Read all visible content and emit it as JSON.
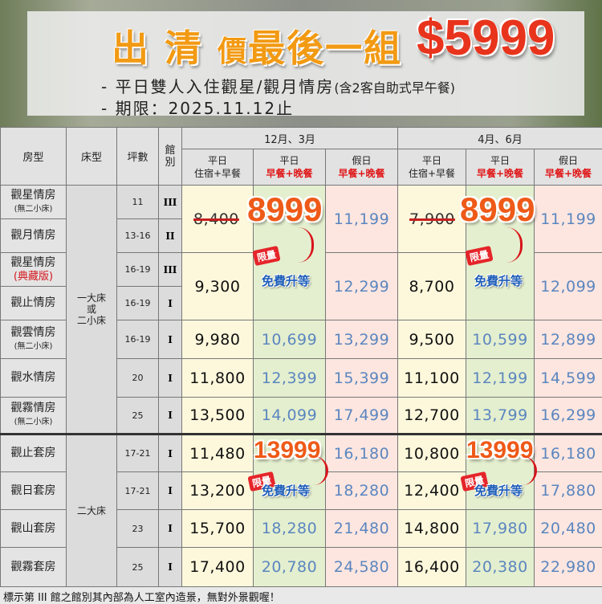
{
  "banner": {
    "title_a": "出 清",
    "title_b": "價",
    "title_c": "最後一組",
    "price": "$5999",
    "line1_main": "- 平日雙人入住觀星/觀月情房",
    "line1_note": "(含2客自助式早午餐)",
    "line2": "- 期限：2025.11.12止"
  },
  "header": {
    "room": "房型",
    "bed": "床型",
    "size": "坪數",
    "hall": "館別",
    "periods": [
      "12月、3月",
      "4月、6月"
    ],
    "sub": [
      {
        "a": "平日",
        "b": "住宿+早餐"
      },
      {
        "a": "平日",
        "b": "早餐+晚餐"
      },
      {
        "a": "假日",
        "b": "早餐+晚餐"
      }
    ]
  },
  "beds": [
    "一大床\n或\n二小床",
    "二大床"
  ],
  "rows": [
    {
      "room": "觀星情房",
      "note": "(無二小床)",
      "size": "11",
      "hall": "III",
      "p": [
        "8,400",
        "",
        "11,199",
        "7,900",
        "",
        "11,199"
      ]
    },
    {
      "room": "觀月情房",
      "size": "13-16",
      "hall": "II"
    },
    {
      "room": "觀星情房",
      "note": "(典藏版)",
      "size": "16-19",
      "hall": "III",
      "p": [
        "9,300",
        "",
        "12,299",
        "8,700",
        "",
        "12,099"
      ]
    },
    {
      "room": "觀止情房",
      "size": "16-19",
      "hall": "I"
    },
    {
      "room": "觀雲情房",
      "note": "(無二小床)",
      "size": "16-19",
      "hall": "I",
      "p": [
        "9,980",
        "10,699",
        "13,299",
        "9,500",
        "10,599",
        "12,899"
      ]
    },
    {
      "room": "觀水情房",
      "size": "20",
      "hall": "I",
      "p": [
        "11,800",
        "12,399",
        "15,399",
        "11,100",
        "12,199",
        "14,599"
      ]
    },
    {
      "room": "觀霧情房",
      "note": "(無二小床)",
      "size": "25",
      "hall": "I",
      "p": [
        "13,500",
        "14,099",
        "17,499",
        "12,700",
        "13,799",
        "16,299"
      ]
    },
    {
      "room": "觀止套房",
      "size": "17-21",
      "hall": "I",
      "p": [
        "11,480",
        "",
        "16,180",
        "10,800",
        "",
        "16,180"
      ]
    },
    {
      "room": "觀日套房",
      "size": "17-21",
      "hall": "I",
      "p": [
        "13,200",
        "",
        "18,280",
        "12,400",
        "",
        "17,880"
      ]
    },
    {
      "room": "觀山套房",
      "size": "23",
      "hall": "I",
      "p": [
        "15,700",
        "18,280",
        "21,480",
        "14,800",
        "17,980",
        "20,480"
      ]
    },
    {
      "room": "觀霧套房",
      "size": "25",
      "hall": "I",
      "p": [
        "17,400",
        "20,780",
        "24,580",
        "16,400",
        "20,380",
        "22,980"
      ]
    }
  ],
  "promo": {
    "price_a": "8999",
    "price_b": "13999",
    "limited": "限量",
    "upgrade": "免費升等"
  },
  "footer": "標示第 III 館之館別其內部為人工室內造景，無對外景觀喔！",
  "colors": {
    "title": "#f29a13",
    "price": "#e8341c",
    "blue_price": "#5b86bf",
    "upgrade": "#1d5db8"
  }
}
